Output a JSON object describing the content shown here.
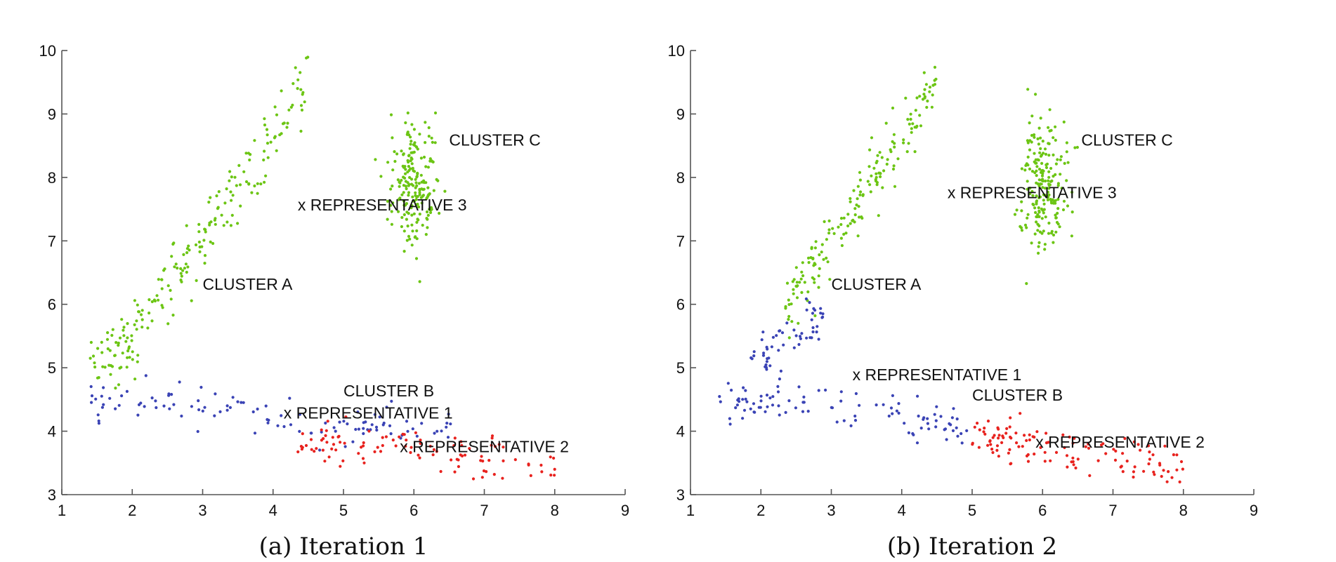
{
  "chart_data": [
    {
      "type": "scatter",
      "caption": "(a) Iteration 1",
      "title": "",
      "xlabel": "",
      "ylabel": "",
      "xlim": [
        1,
        9
      ],
      "ylim": [
        3,
        10
      ],
      "xticks": [
        "1",
        "2",
        "3",
        "4",
        "5",
        "6",
        "7",
        "8",
        "9"
      ],
      "yticks": [
        "3",
        "4",
        "5",
        "6",
        "7",
        "8",
        "9",
        "10"
      ],
      "grid": false,
      "series": [
        {
          "name": "Cluster A (green)",
          "color": "#6cc514",
          "generator": "diag",
          "n": 210,
          "x_range": [
            1.4,
            4.5
          ],
          "y_at_x": [
            [
              1.4,
              4.95
            ],
            [
              2.0,
              5.4
            ],
            [
              2.5,
              6.3
            ],
            [
              3.0,
              7.0
            ],
            [
              3.5,
              7.9
            ],
            [
              4.0,
              8.6
            ],
            [
              4.5,
              9.6
            ]
          ],
          "spread_y": 0.28
        },
        {
          "name": "Cluster C (green)",
          "color": "#6cc514",
          "generator": "blob",
          "n": 200,
          "center": [
            6.0,
            7.9
          ],
          "sd": [
            0.17,
            0.5
          ]
        },
        {
          "name": "Cluster B (blue)",
          "color": "#3a43b5",
          "generator": "band",
          "n": 110,
          "x_range": [
            1.4,
            6.6
          ],
          "y_at_x": [
            [
              1.4,
              4.45
            ],
            [
              3.0,
              4.45
            ],
            [
              4.0,
              4.2
            ],
            [
              5.0,
              4.1
            ],
            [
              6.6,
              4.0
            ]
          ],
          "spread_y": 0.18
        },
        {
          "name": "Cluster B' (red)",
          "color": "#e8221e",
          "generator": "band",
          "n": 105,
          "x_range": [
            4.3,
            8.0
          ],
          "y_at_x": [
            [
              4.3,
              3.85
            ],
            [
              5.0,
              3.8
            ],
            [
              6.0,
              3.7
            ],
            [
              7.0,
              3.6
            ],
            [
              8.0,
              3.4
            ]
          ],
          "spread_y": 0.16
        }
      ],
      "annotations": [
        {
          "text": "CLUSTER C",
          "x": 6.5,
          "y": 8.5
        },
        {
          "text": "x REPRESENTATIVE 3",
          "x": 4.35,
          "y": 7.48
        },
        {
          "text": "CLUSTER A",
          "x": 3.0,
          "y": 6.23
        },
        {
          "text": "CLUSTER B",
          "x": 5.0,
          "y": 4.55
        },
        {
          "text": "x REPRESENTATIVE 1",
          "x": 4.15,
          "y": 4.2
        },
        {
          "text": "x REPRESENTATIVE 2",
          "x": 5.8,
          "y": 3.67
        }
      ]
    },
    {
      "type": "scatter",
      "caption": "(b) Iteration 2",
      "title": "",
      "xlabel": "",
      "ylabel": "",
      "xlim": [
        1,
        9
      ],
      "ylim": [
        3,
        10
      ],
      "xticks": [
        "1",
        "2",
        "3",
        "4",
        "5",
        "6",
        "7",
        "8",
        "9"
      ],
      "yticks": [
        "3",
        "4",
        "5",
        "6",
        "7",
        "8",
        "9",
        "10"
      ],
      "grid": false,
      "series": [
        {
          "name": "Cluster A (green)",
          "color": "#6cc514",
          "generator": "diag",
          "n": 175,
          "x_range": [
            2.35,
            4.5
          ],
          "y_at_x": [
            [
              2.35,
              6.0
            ],
            [
              2.5,
              6.3
            ],
            [
              3.0,
              7.0
            ],
            [
              3.5,
              7.9
            ],
            [
              4.0,
              8.6
            ],
            [
              4.5,
              9.6
            ]
          ],
          "spread_y": 0.28
        },
        {
          "name": "Cluster C (green)",
          "color": "#6cc514",
          "generator": "blob",
          "n": 200,
          "center": [
            6.0,
            7.9
          ],
          "sd": [
            0.17,
            0.5
          ]
        },
        {
          "name": "Cluster A lower part (blue)",
          "color": "#3a43b5",
          "generator": "diag",
          "n": 55,
          "x_range": [
            1.8,
            2.9
          ],
          "y_at_x": [
            [
              1.8,
              5.1
            ],
            [
              2.2,
              5.4
            ],
            [
              2.5,
              5.6
            ],
            [
              2.9,
              5.8
            ]
          ],
          "spread_y": 0.22
        },
        {
          "name": "Cluster B (blue)",
          "color": "#3a43b5",
          "generator": "band",
          "n": 100,
          "x_range": [
            1.4,
            5.0
          ],
          "y_at_x": [
            [
              1.4,
              4.45
            ],
            [
              3.0,
              4.45
            ],
            [
              4.0,
              4.2
            ],
            [
              5.0,
              4.05
            ]
          ],
          "spread_y": 0.18
        },
        {
          "name": "Cluster B' (red)",
          "color": "#e8221e",
          "generator": "band",
          "n": 120,
          "x_range": [
            5.0,
            8.0
          ],
          "y_at_x": [
            [
              5.0,
              3.9
            ],
            [
              6.0,
              3.75
            ],
            [
              7.0,
              3.6
            ],
            [
              8.0,
              3.4
            ]
          ],
          "spread_y": 0.17
        }
      ],
      "annotations": [
        {
          "text": "CLUSTER C",
          "x": 6.55,
          "y": 8.5
        },
        {
          "text": "x REPRESENTATIVE 3",
          "x": 4.65,
          "y": 7.67
        },
        {
          "text": "CLUSTER A",
          "x": 3.0,
          "y": 6.23
        },
        {
          "text": "x REPRESENTATIVE 1",
          "x": 3.3,
          "y": 4.8
        },
        {
          "text": "CLUSTER B",
          "x": 5.0,
          "y": 4.48
        },
        {
          "text": "x REPRESENTATIVE 2",
          "x": 5.9,
          "y": 3.74
        }
      ]
    }
  ]
}
